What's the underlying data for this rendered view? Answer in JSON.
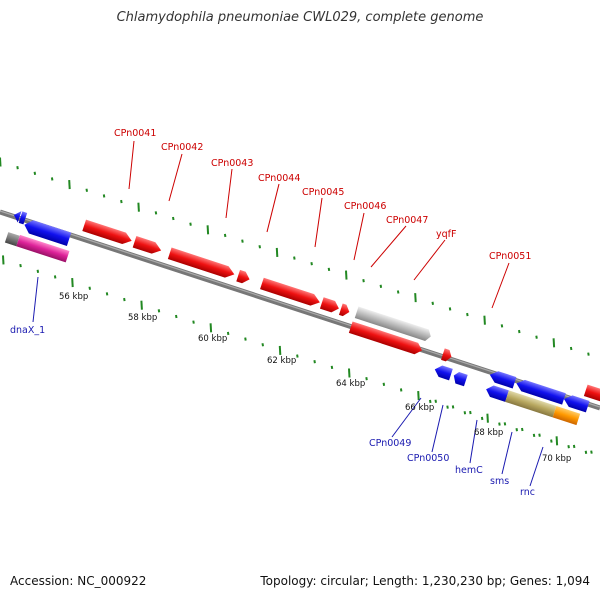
{
  "title": "Chlamydophila pneumoniae CWL029, complete genome",
  "footer": {
    "accession": "Accession: NC_000922",
    "summary": "Topology: circular; Length: 1,230,230 bp; Genes: 1,094"
  },
  "colors": {
    "forward_gene": "#ee1111",
    "reverse_gene": "#1111ee",
    "other_gene_gray": "#bbbbbb",
    "rna_magenta": "#dd2299",
    "rna_cyan": "#11cccc",
    "orange_gene": "#ff9900",
    "olive_gene": "#b8a860",
    "top_label": "#cc0000",
    "bottom_label": "#1a1ab0",
    "ticks": "#228822"
  },
  "scale_labels": [
    "56 kbp",
    "58 kbp",
    "60 kbp",
    "62 kbp",
    "64 kbp",
    "66 kbp",
    "68 kbp",
    "70 kbp"
  ],
  "top_labels": [
    "CPn0041",
    "CPn0042",
    "CPn0043",
    "CPn0044",
    "CPn0045",
    "CPn0046",
    "CPn0047",
    "yqfF",
    "CPn0051"
  ],
  "bottom_labels": [
    "dnaX_1",
    "CPn0049",
    "CPn0050",
    "hemC",
    "sms",
    "rnc"
  ]
}
